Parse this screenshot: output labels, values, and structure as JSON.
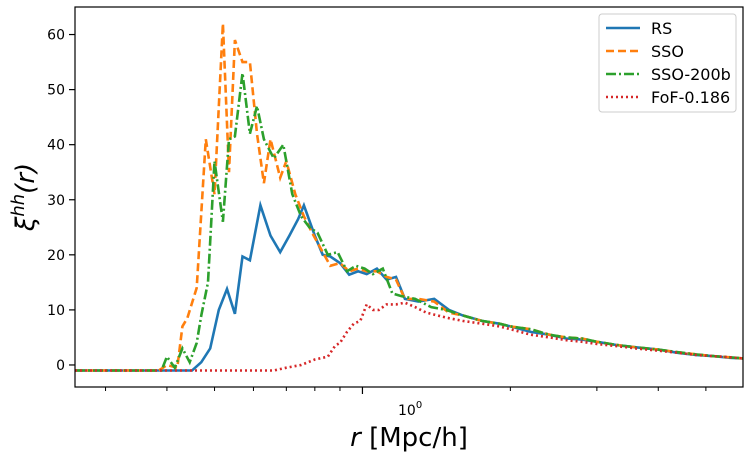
{
  "chart_data": {
    "type": "line",
    "xscale": "log",
    "xlim": [
      0.26,
      5.95
    ],
    "ylim": [
      -4,
      65
    ],
    "yticks": [
      0,
      10,
      20,
      30,
      40,
      50,
      60
    ],
    "xtick_major": [
      1
    ],
    "xtick_labels": [
      "10",
      "0"
    ],
    "xlabel_var": "r",
    "xlabel_units": " [Mpc/h]",
    "ylabel_var": "ξ",
    "ylabel_sup": "hh",
    "ylabel_arg": "(r)",
    "legend_position": "upper-right",
    "grid": false,
    "series": [
      {
        "name": "RS",
        "color": "#1f77b4",
        "dash": "solid",
        "x": [
          0.26,
          0.45,
          0.47,
          0.49,
          0.51,
          0.53,
          0.55,
          0.57,
          0.59,
          0.62,
          0.65,
          0.68,
          0.71,
          0.74,
          0.76,
          0.8,
          0.83,
          0.86,
          0.9,
          0.94,
          0.98,
          1.02,
          1.07,
          1.12,
          1.17,
          1.22,
          1.3,
          1.4,
          1.5,
          1.6,
          1.75,
          1.9,
          2.0,
          2.2,
          2.4,
          2.6,
          2.8,
          3.0,
          3.3,
          3.6,
          4.0,
          4.4,
          4.8,
          5.2,
          5.6,
          5.95
        ],
        "y": [
          -1,
          -1,
          0.5,
          3,
          10,
          13.8,
          9.3,
          19.7,
          19,
          29,
          23.5,
          20.5,
          23.5,
          26.5,
          29,
          23.5,
          20,
          19.7,
          18.5,
          16.4,
          17,
          16.5,
          17.5,
          15.5,
          16,
          12,
          11.5,
          12,
          10,
          9,
          8,
          7.5,
          7,
          6,
          5.5,
          4.8,
          4.6,
          4.2,
          3.6,
          3.2,
          2.8,
          2.2,
          1.8,
          1.6,
          1.3,
          1.2
        ]
      },
      {
        "name": "SSO",
        "color": "#ff7f0e",
        "dash": "8,4",
        "x": [
          0.26,
          0.385,
          0.4,
          0.42,
          0.43,
          0.44,
          0.46,
          0.48,
          0.5,
          0.52,
          0.535,
          0.55,
          0.57,
          0.59,
          0.61,
          0.63,
          0.65,
          0.68,
          0.7,
          0.73,
          0.76,
          0.79,
          0.83,
          0.86,
          0.9,
          0.94,
          0.98,
          1.02,
          1.07,
          1.12,
          1.17,
          1.22,
          1.3,
          1.4,
          1.5,
          1.6,
          1.75,
          1.9,
          2.0,
          2.2,
          2.4,
          2.6,
          2.8,
          3.0,
          3.3,
          3.6,
          4.0,
          4.4,
          4.8,
          5.2,
          5.6,
          5.95
        ],
        "y": [
          -1,
          -1,
          0,
          -0.5,
          7,
          8.5,
          14,
          41,
          31,
          62,
          35,
          59,
          55,
          55,
          42,
          33,
          41,
          34,
          37,
          31,
          27,
          24,
          20.5,
          18,
          18.5,
          17,
          17.5,
          17,
          17,
          16,
          15.5,
          12,
          12,
          11.5,
          9.5,
          9,
          8,
          7.5,
          7,
          6.5,
          5.5,
          5,
          4.8,
          4.2,
          3.6,
          3.2,
          2.8,
          2.3,
          1.9,
          1.6,
          1.4,
          1.2
        ]
      },
      {
        "name": "SSO-200b",
        "color": "#2ca02c",
        "dash": "10,3,2,3",
        "x": [
          0.26,
          0.39,
          0.4,
          0.415,
          0.43,
          0.445,
          0.46,
          0.47,
          0.485,
          0.5,
          0.52,
          0.535,
          0.55,
          0.57,
          0.59,
          0.61,
          0.63,
          0.66,
          0.69,
          0.72,
          0.75,
          0.78,
          0.81,
          0.85,
          0.89,
          0.93,
          0.97,
          1.01,
          1.05,
          1.1,
          1.15,
          1.2,
          1.28,
          1.38,
          1.48,
          1.6,
          1.75,
          1.9,
          2.0,
          2.2,
          2.4,
          2.6,
          2.8,
          3.0,
          3.3,
          3.6,
          4.0,
          4.4,
          4.8,
          5.2,
          5.6,
          5.95
        ],
        "y": [
          -1,
          -1,
          1.5,
          -0.5,
          3,
          0.5,
          4,
          9,
          15,
          37,
          26,
          41,
          41.5,
          53,
          42,
          47,
          41,
          37.5,
          40,
          31,
          27,
          25,
          24,
          20,
          20.5,
          17,
          18,
          17.5,
          16.5,
          17.5,
          13,
          12.5,
          12,
          10.5,
          10,
          9,
          8,
          7.5,
          7,
          6.5,
          5.5,
          5,
          4.8,
          4.2,
          3.6,
          3.2,
          2.8,
          2.3,
          1.9,
          1.6,
          1.4,
          1.2
        ]
      },
      {
        "name": "FoF-0.186",
        "color": "#d62728",
        "dash": "2,3",
        "x": [
          0.26,
          0.66,
          0.7,
          0.75,
          0.8,
          0.85,
          0.88,
          0.9,
          0.93,
          0.96,
          0.99,
          1.02,
          1.05,
          1.08,
          1.12,
          1.17,
          1.22,
          1.28,
          1.35,
          1.42,
          1.5,
          1.6,
          1.75,
          1.9,
          2.0,
          2.2,
          2.4,
          2.6,
          2.8,
          3.0,
          3.3,
          3.6,
          4.0,
          4.4,
          4.8,
          5.2,
          5.6,
          5.95
        ],
        "y": [
          -1,
          -1,
          -0.5,
          0,
          1,
          1.5,
          3.5,
          4,
          6,
          7.5,
          8,
          11,
          10,
          10,
          11,
          11,
          11.3,
          10.5,
          9.5,
          9,
          8.5,
          8,
          7.5,
          7,
          6.5,
          5.5,
          5,
          4.5,
          4.2,
          3.8,
          3.4,
          3,
          2.6,
          2.2,
          1.8,
          1.6,
          1.4,
          1.2
        ]
      }
    ]
  }
}
